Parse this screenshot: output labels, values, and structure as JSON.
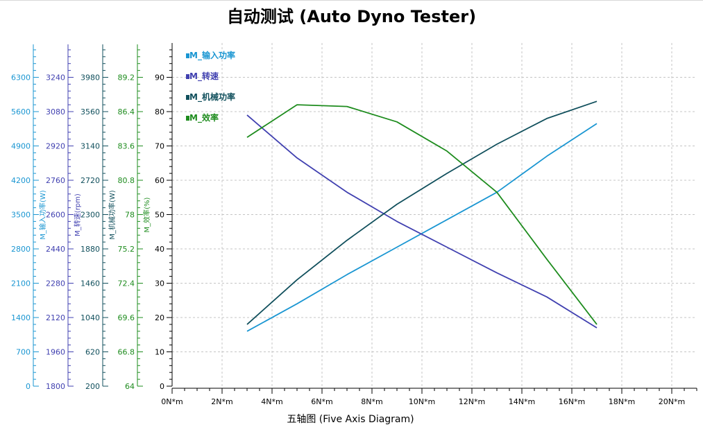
{
  "chart_data": {
    "type": "line",
    "title": "自动测试 (Auto Dyno Tester)",
    "xlabel": "五轴图 (Five Axis Diagram)",
    "x_tick_labels": [
      "0N*m",
      "2N*m",
      "4N*m",
      "6N*m",
      "8N*m",
      "10N*m",
      "12N*m",
      "14N*m",
      "16N*m",
      "18N*m",
      "20N*m"
    ],
    "xlim": [
      0,
      21
    ],
    "grid": true,
    "legend_position": "top-left",
    "primary_axis": {
      "ticks": [
        "0",
        "10",
        "20",
        "30",
        "40",
        "50",
        "60",
        "70",
        "80",
        "90"
      ],
      "ylim": [
        0,
        100
      ]
    },
    "left_axes": [
      {
        "label": "M_输入功率(W)",
        "color": "#1a96d2",
        "ticks": [
          "0",
          "700",
          "1400",
          "2100",
          "2800",
          "3500",
          "4200",
          "4900",
          "5600",
          "6300"
        ]
      },
      {
        "label": "M_转速(rpm)",
        "color": "#4040b0",
        "ticks": [
          "1800",
          "1960",
          "2120",
          "2280",
          "2440",
          "2600",
          "2760",
          "2920",
          "3080",
          "3240"
        ]
      },
      {
        "label": "M_机械功率(W)",
        "color": "#104f5c",
        "ticks": [
          "200",
          "620",
          "1040",
          "1460",
          "1880",
          "2300",
          "2720",
          "3140",
          "3560",
          "3980"
        ]
      },
      {
        "label": "M_效率(%)",
        "color": "#1e8c1e",
        "ticks": [
          "64",
          "66.8",
          "69.6",
          "72.4",
          "75.2",
          "78",
          "80.8",
          "83.6",
          "86.4",
          "89.2"
        ]
      }
    ],
    "series": [
      {
        "name": "M_输入功率",
        "color": "#1a96d2",
        "x": [
          3,
          5,
          7,
          9,
          11,
          13,
          15,
          17
        ],
        "y": [
          16,
          24,
          32.5,
          40.5,
          48.5,
          56.5,
          67,
          76.5
        ]
      },
      {
        "name": "M_转速",
        "color": "#4040b0",
        "x": [
          3,
          5,
          7,
          9,
          11,
          13,
          15,
          17
        ],
        "y": [
          79,
          66.5,
          56.5,
          48,
          40.5,
          33,
          26,
          17
        ]
      },
      {
        "name": "M_机械功率",
        "color": "#104f5c",
        "x": [
          3,
          5,
          7,
          9,
          11,
          13,
          15,
          17
        ],
        "y": [
          18,
          31,
          42.5,
          53,
          62,
          70.5,
          78,
          83
        ]
      },
      {
        "name": "M_效率",
        "color": "#1e8c1e",
        "x": [
          3,
          5,
          7,
          9,
          11,
          13,
          15,
          17
        ],
        "y": [
          72.5,
          82,
          81.5,
          77,
          68.5,
          56.5,
          37,
          18
        ]
      }
    ]
  }
}
